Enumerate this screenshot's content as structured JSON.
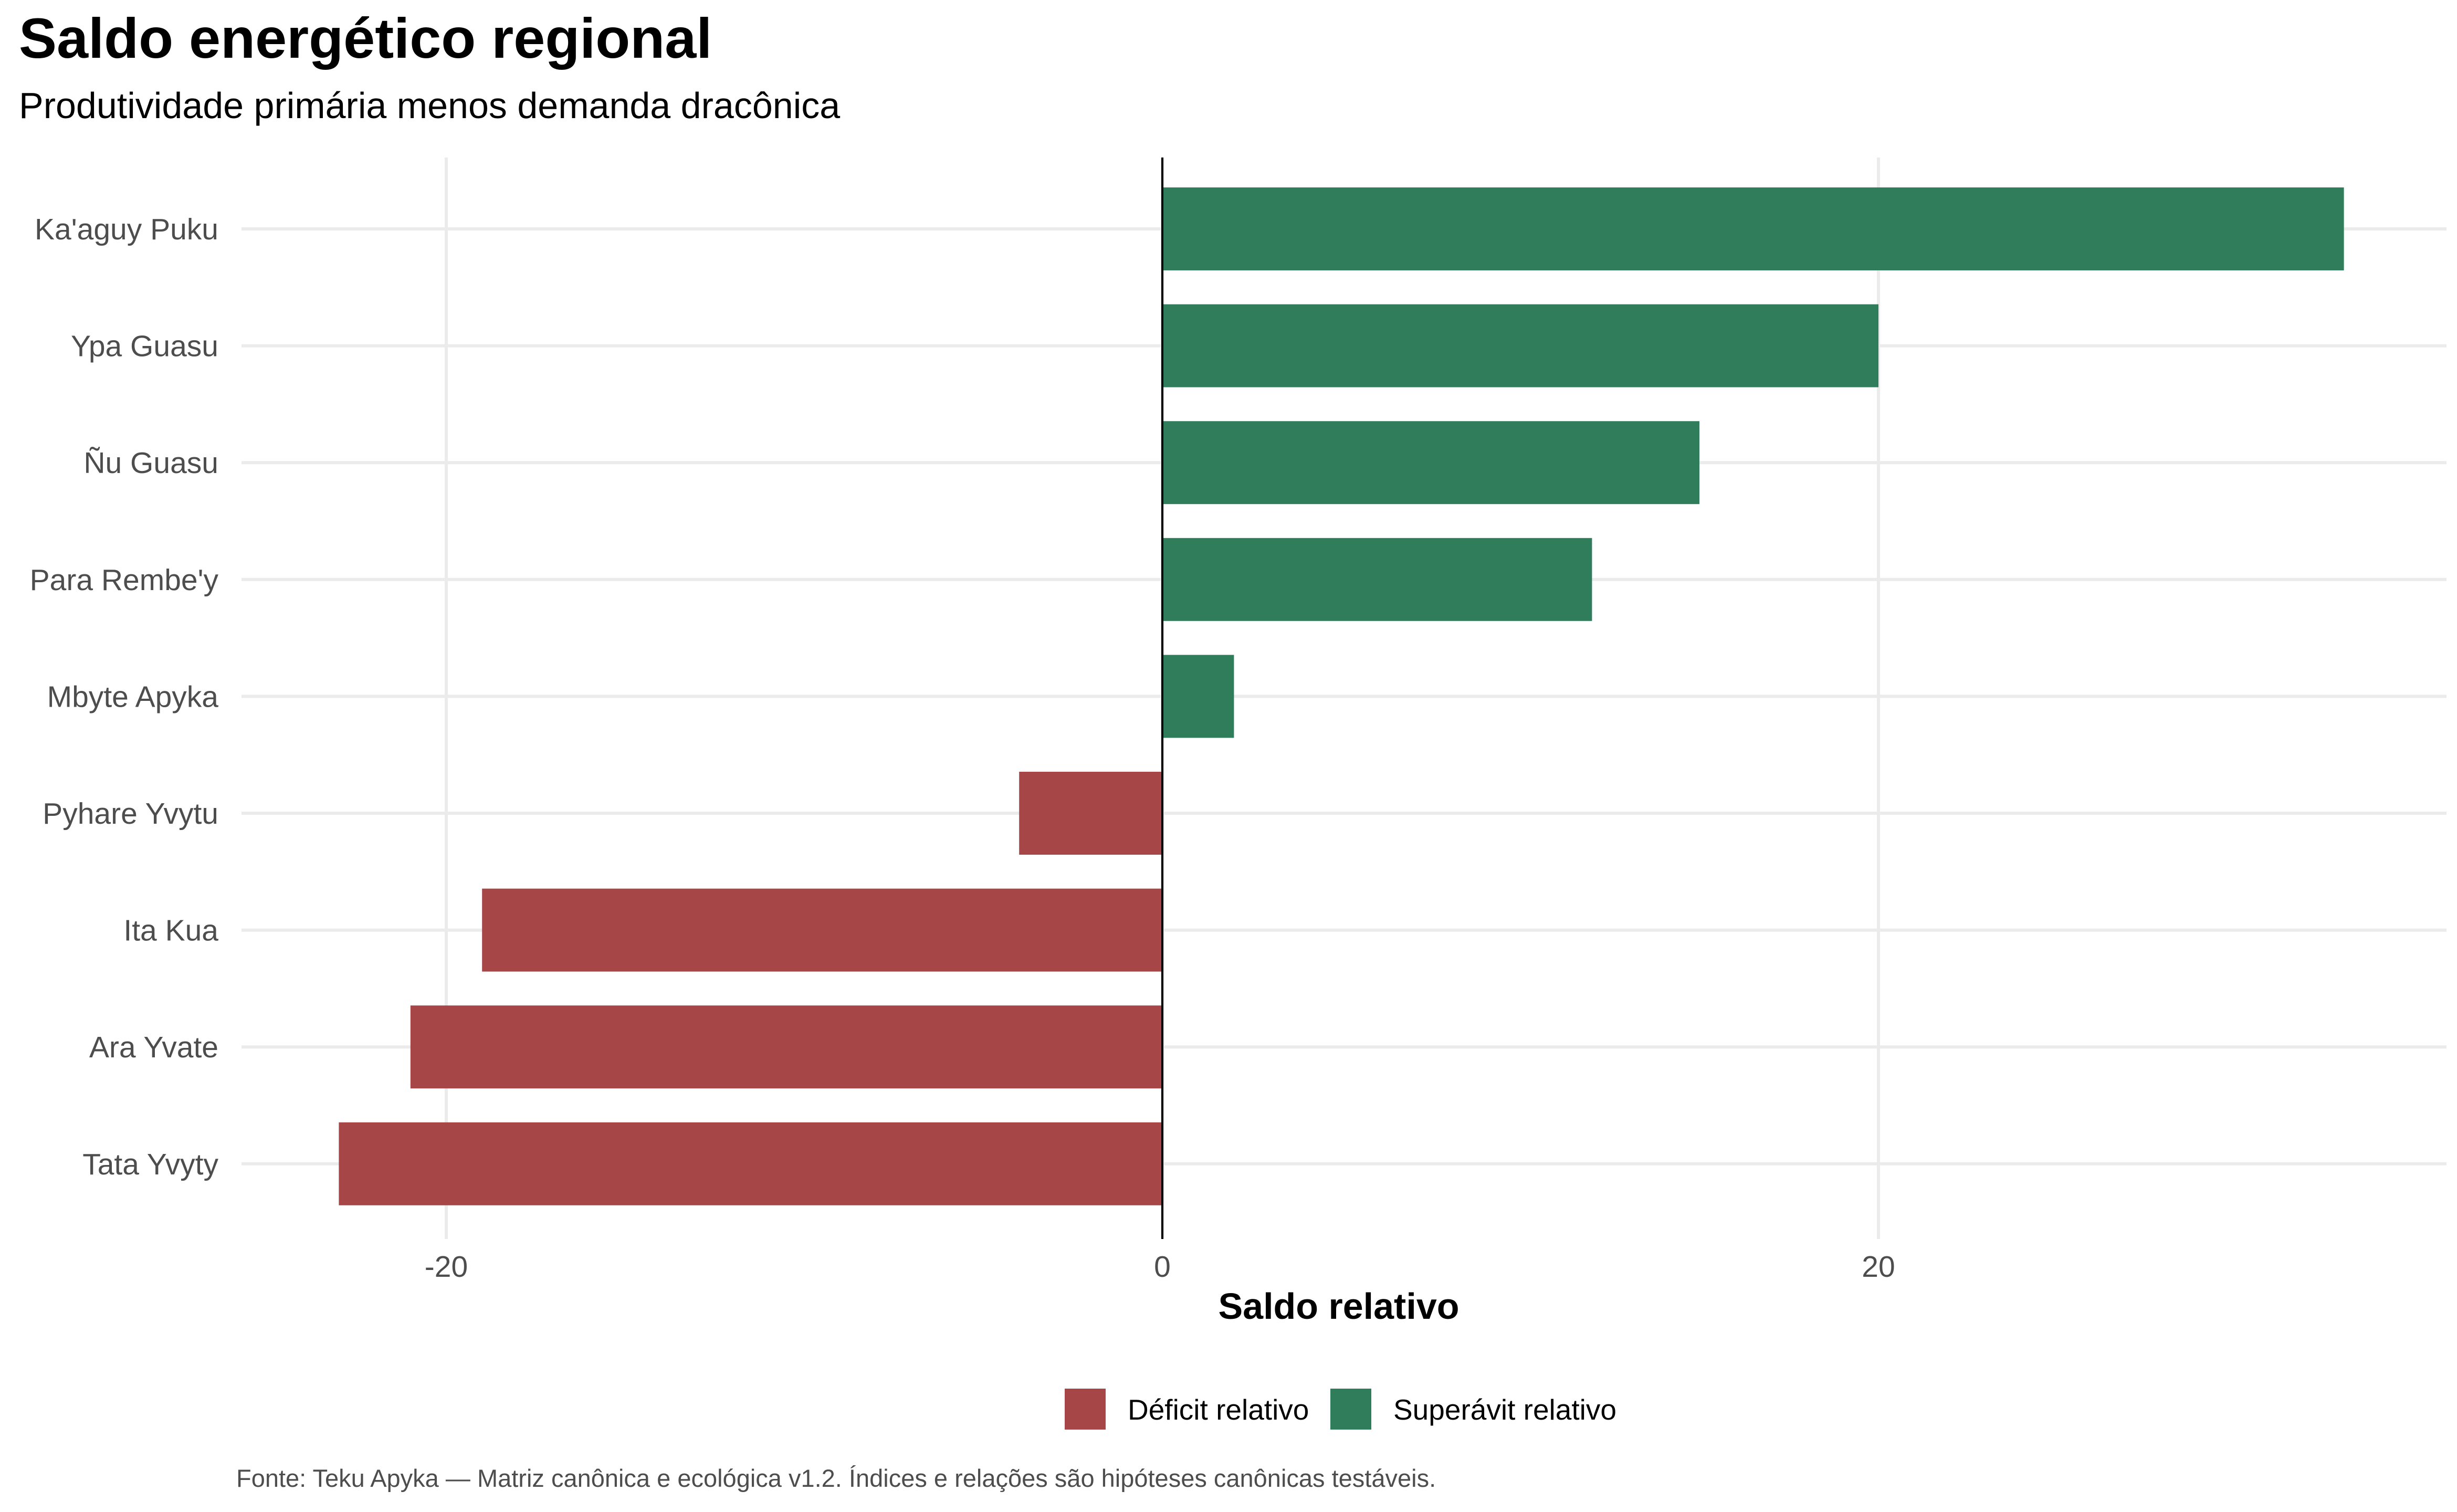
{
  "chart_data": {
    "type": "bar",
    "orientation": "horizontal",
    "title": "Saldo energético regional",
    "subtitle": "Produtividade primária menos demanda dracônica",
    "xlabel": "Saldo relativo",
    "ylabel": "",
    "xlim": [
      -25,
      36
    ],
    "x_ticks": [
      -20,
      0,
      20
    ],
    "grid": true,
    "categories": [
      "Ka'aguy Puku",
      "Ypa Guasu",
      "Ñu Guasu",
      "Para Rembe'y",
      "Mbyte Apyka",
      "Pyhare Yvytu",
      "Ita Kua",
      "Ara Yvate",
      "Tata Yvyty"
    ],
    "values": [
      33,
      20,
      15,
      12,
      2,
      -4,
      -19,
      -21,
      -23
    ],
    "legend": {
      "placement": "bottom",
      "entries": [
        {
          "label": "Déficit relativo",
          "color": "#a64646"
        },
        {
          "label": "Superávit relativo",
          "color": "#2f7d5b"
        }
      ]
    },
    "caption": "Fonte: Teku Apyka — Matriz canônica e ecológica v1.2. Índices e relações são hipóteses canônicas testáveis.",
    "colors": {
      "negative": "#a64646",
      "positive": "#2f7d5b",
      "grid": "#ebebeb",
      "zero_line": "#000000"
    }
  }
}
